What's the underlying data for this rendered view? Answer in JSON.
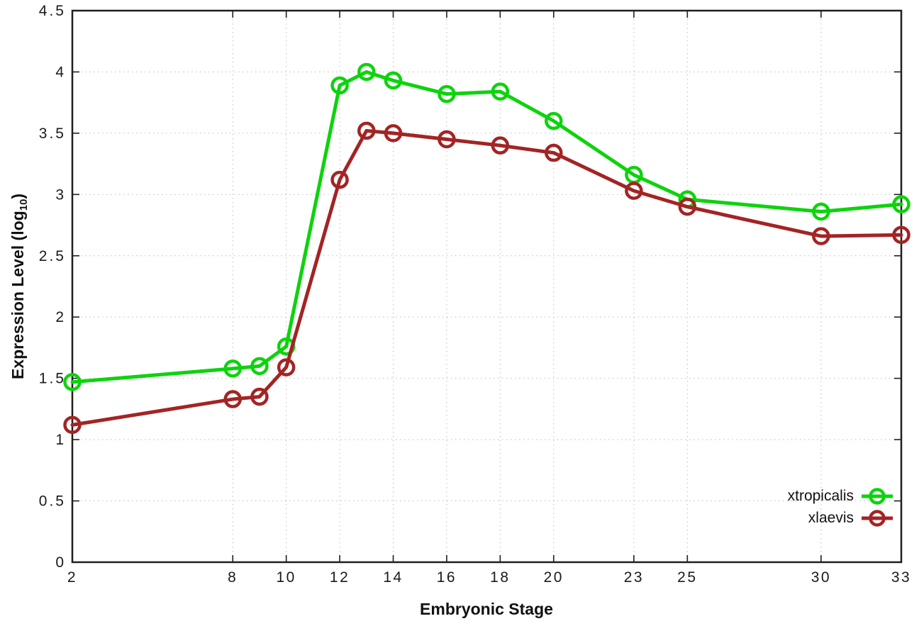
{
  "chart_data": {
    "type": "line",
    "title": "",
    "xlabel": "Embryonic Stage",
    "ylabel": "Expression Level (log10)",
    "ylabel_parts": {
      "prefix": "Expression Level (log",
      "sub": "10",
      "suffix": ")"
    },
    "x_range": [
      2,
      33
    ],
    "y_range": [
      0,
      4.5
    ],
    "x_ticks": [
      2,
      8,
      10,
      12,
      14,
      16,
      18,
      20,
      23,
      25,
      30,
      33
    ],
    "y_ticks": [
      0,
      0.5,
      1,
      1.5,
      2,
      2.5,
      3,
      3.5,
      4,
      4.5
    ],
    "y_tick_labels": [
      "0",
      "0.5",
      "1",
      "1.5",
      "2",
      "2.5",
      "3",
      "3.5",
      "4",
      "4.5"
    ],
    "grid": "dotted",
    "legend_position": "bottom-right",
    "colors": {
      "grid": "#bdbdbd",
      "border": "#1f1f1f",
      "text": "#1a1a1a"
    },
    "series": [
      {
        "name": "xtropicalis",
        "color": "#0dd30d",
        "marker": "open-circle",
        "x": [
          2,
          8,
          9,
          10,
          12,
          13,
          14,
          16,
          18,
          20,
          23,
          25,
          30,
          33
        ],
        "y": [
          1.47,
          1.58,
          1.6,
          1.76,
          3.89,
          4.0,
          3.93,
          3.82,
          3.84,
          3.6,
          3.16,
          2.96,
          2.86,
          2.92
        ]
      },
      {
        "name": "xlaevis",
        "color": "#a32424",
        "marker": "open-circle",
        "x": [
          2,
          8,
          9,
          10,
          12,
          13,
          14,
          16,
          18,
          20,
          23,
          25,
          30,
          33
        ],
        "y": [
          1.12,
          1.33,
          1.35,
          1.59,
          3.12,
          3.52,
          3.5,
          3.45,
          3.4,
          3.34,
          3.03,
          2.9,
          2.66,
          2.67
        ]
      }
    ]
  }
}
